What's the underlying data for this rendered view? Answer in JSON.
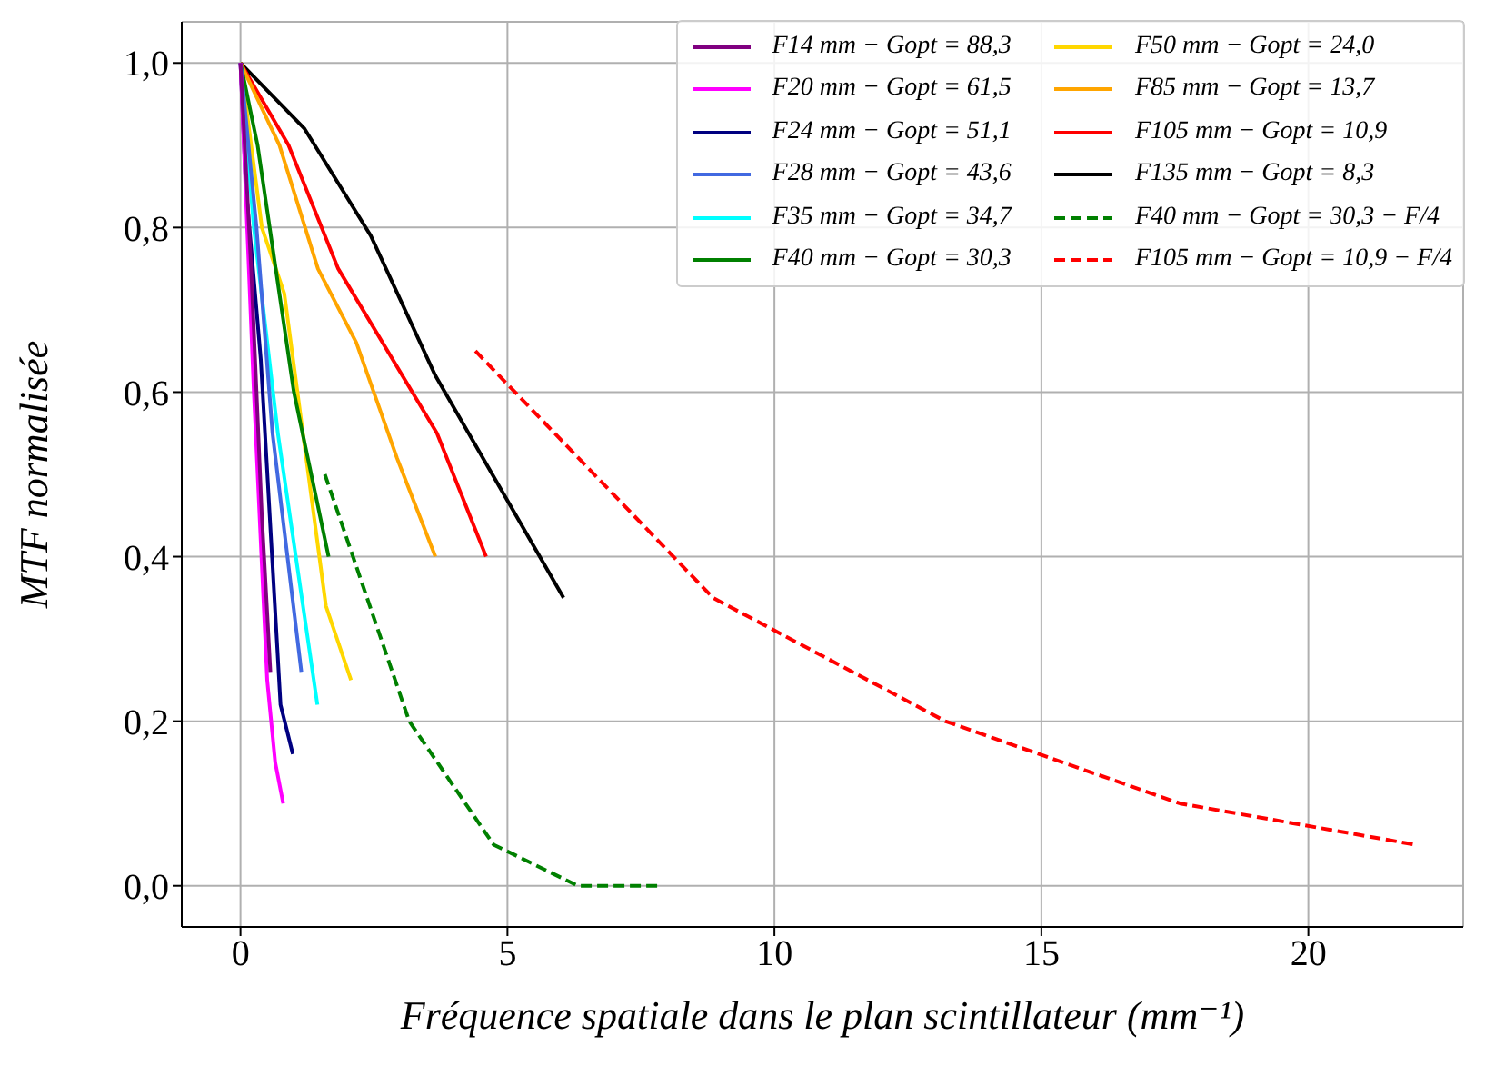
{
  "chart_data": {
    "type": "line",
    "xlabel": "Fréquence spatiale dans le plan scintillateur (mm⁻¹)",
    "ylabel": "MTF normalisée",
    "xlim": [
      -1.1,
      22.9
    ],
    "ylim": [
      -0.05,
      1.05
    ],
    "xticks": [
      0,
      5,
      10,
      15,
      20
    ],
    "yticks": [
      {
        "value": 0,
        "label": "0,0"
      },
      {
        "value": 0.2,
        "label": "0,2"
      },
      {
        "value": 0.4,
        "label": "0,4"
      },
      {
        "value": 0.6,
        "label": "0,6"
      },
      {
        "value": 0.8,
        "label": "0,8"
      },
      {
        "value": 1,
        "label": "1,0"
      }
    ],
    "grid": true,
    "legend": "top right",
    "marker": "none",
    "series": [
      {
        "name": "F14 mm − Gopt = 88,3",
        "color": "#800080",
        "x": [
          0,
          0.2,
          0.4,
          0.56
        ],
        "values": [
          1,
          0.75,
          0.45,
          0.26
        ]
      },
      {
        "name": "F20 mm − Gopt = 61,5",
        "color": "#ff00ff",
        "x": [
          0,
          0.25,
          0.5,
          0.65,
          0.8
        ],
        "values": [
          1,
          0.6,
          0.25,
          0.15,
          0.1
        ]
      },
      {
        "name": "F24 mm − Gopt = 51,1",
        "color": "#000080",
        "x": [
          0,
          0.1,
          0.38,
          0.75,
          0.98
        ],
        "values": [
          1,
          0.85,
          0.64,
          0.22,
          0.16
        ]
      },
      {
        "name": "F28 mm − Gopt = 43,6",
        "color": "#4169e1",
        "x": [
          0,
          0.3,
          0.6,
          1.14
        ],
        "values": [
          1,
          0.8,
          0.55,
          0.26
        ]
      },
      {
        "name": "F35 mm − Gopt = 34,7",
        "color": "#00ffff",
        "x": [
          0,
          0.25,
          0.7,
          1.44
        ],
        "values": [
          1,
          0.8,
          0.55,
          0.22
        ]
      },
      {
        "name": "F40 mm − Gopt = 30,3",
        "color": "#008000",
        "x": [
          0,
          0.32,
          1.0,
          1.65
        ],
        "values": [
          1,
          0.9,
          0.6,
          0.4
        ]
      },
      {
        "name": "F50 mm − Gopt = 24,0",
        "color": "#ffd700",
        "x": [
          0,
          0.4,
          0.82,
          1.6,
          2.07
        ],
        "values": [
          1,
          0.8,
          0.72,
          0.34,
          0.25
        ]
      },
      {
        "name": "F85 mm − Gopt = 13,7",
        "color": "#ffa500",
        "x": [
          0,
          0.73,
          1.45,
          2.17,
          2.93,
          3.65
        ],
        "values": [
          1,
          0.9,
          0.75,
          0.66,
          0.52,
          0.4
        ]
      },
      {
        "name": "F105 mm − Gopt = 10,9",
        "color": "#ff0000",
        "x": [
          0,
          0.9,
          1.83,
          3.68,
          4.6
        ],
        "values": [
          1,
          0.9,
          0.75,
          0.55,
          0.4
        ]
      },
      {
        "name": "F135 mm − Gopt = 8,3",
        "color": "#000000",
        "x": [
          0,
          1.2,
          2.44,
          3.65,
          6.05
        ],
        "values": [
          1,
          0.92,
          0.79,
          0.62,
          0.35
        ]
      },
      {
        "name": "F40 mm − Gopt = 30,3 − F/4",
        "color": "#008000",
        "line_style": "dashed",
        "x": [
          1.58,
          3.16,
          4.74,
          6.32,
          7.9
        ],
        "values": [
          0.5,
          0.2,
          0.05,
          0,
          0
        ]
      },
      {
        "name": "F105 mm − Gopt = 10,9 − F/4",
        "color": "#ff0000",
        "line_style": "dashed",
        "x": [
          4.4,
          8.85,
          13.2,
          17.6,
          22
        ],
        "values": [
          0.65,
          0.35,
          0.2,
          0.1,
          0.05
        ]
      }
    ]
  }
}
